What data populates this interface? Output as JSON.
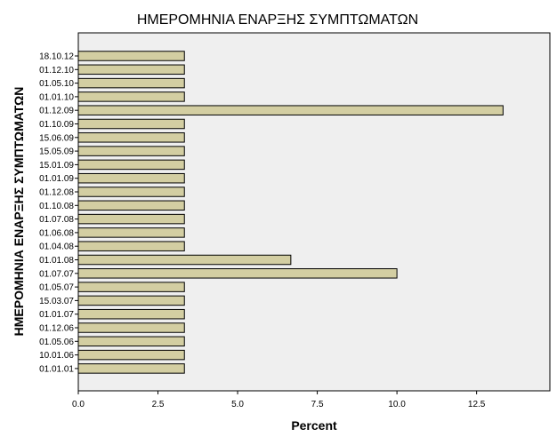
{
  "chart_data": {
    "type": "bar",
    "orientation": "horizontal",
    "title": "ΗΜΕΡΟΜΗΝΙΑ ΕΝΑΡΞΗΣ ΣΥΜΠΤΩΜΑΤΩΝ",
    "xlabel": "Percent",
    "ylabel": "ΗΜΕΡΟΜΗΝΙΑ ΕΝΑΡΞΗΣ ΣΥΜΠΤΩΜΑΤΩΝ",
    "xlim": [
      0,
      14.8
    ],
    "xticks": [
      "0.0",
      "2.5",
      "5.0",
      "7.5",
      "10.0",
      "12.5"
    ],
    "categories": [
      "18.10.12",
      "01.12.10",
      "01.05.10",
      "01.01.10",
      "01.12.09",
      "01.10.09",
      "15.06.09",
      "15.05.09",
      "15.01.09",
      "01.01.09",
      "01.12.08",
      "01.10.08",
      "01.07.08",
      "01.06.08",
      "01.04.08",
      "01.01.08",
      "01.07.07",
      "01.05.07",
      "15.03.07",
      "01.01.07",
      "01.12.06",
      "01.05.06",
      "10.01.06",
      "01.01.01"
    ],
    "values": [
      3.33,
      3.33,
      3.33,
      3.33,
      13.33,
      3.33,
      3.33,
      3.33,
      3.33,
      3.33,
      3.33,
      3.33,
      3.33,
      3.33,
      3.33,
      6.67,
      10.0,
      3.33,
      3.33,
      3.33,
      3.33,
      3.33,
      3.33,
      3.33
    ],
    "grid": false,
    "colors": {
      "bar_fill": "#d3cea2",
      "bar_stroke": "#000000",
      "plot_background": "#efefef",
      "page_background": "#ffffff"
    }
  }
}
